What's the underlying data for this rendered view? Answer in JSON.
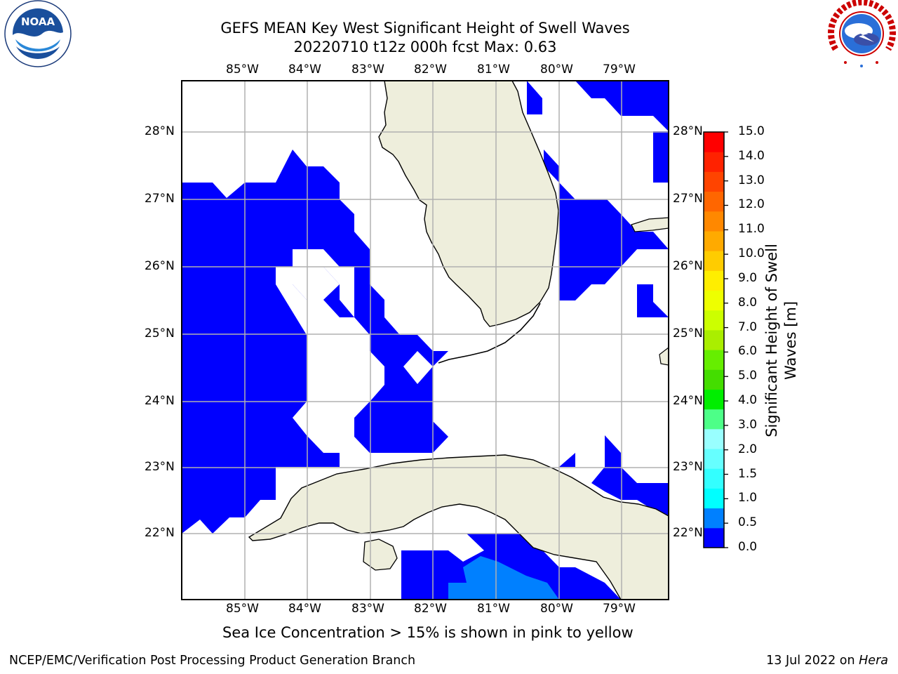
{
  "title": {
    "line1": "GEFS MEAN Key West Significant Height of Swell Waves",
    "line2": "20220710 t12z 000h fcst   Max: 0.63"
  },
  "logos": {
    "left": {
      "name": "NOAA",
      "ring_text": "NATIONAL OCEANIC AND ATMOSPHERIC ADMINISTRATION",
      "bottom_text": "U.S. DEPARTMENT OF COMMERCE"
    },
    "right": {
      "ring_text": "NATIONAL WEATHER SERVICE"
    }
  },
  "map": {
    "lon_labels": [
      "85°W",
      "84°W",
      "83°W",
      "82°W",
      "81°W",
      "80°W",
      "79°W"
    ],
    "lat_labels": [
      "28°N",
      "27°N",
      "26°N",
      "25°N",
      "24°N",
      "23°N",
      "22°N"
    ],
    "extent": {
      "lon_min": -86.0,
      "lon_max": -78.25,
      "lat_min": 21.0,
      "lat_max": 28.75
    },
    "colors": {
      "land": "#eeeedc",
      "swell_0_0.5": "#0000ff",
      "swell_0.5_1.0": "#0080ff",
      "grid": "#b0b0b0"
    }
  },
  "colorbar": {
    "label": "Significant Height of Swell Waves [m]",
    "label_line1": "Significant Height of Swell",
    "label_line2": "Waves [m]",
    "ticks": [
      "15.0",
      "14.0",
      "13.0",
      "12.0",
      "11.0",
      "10.0",
      "9.0",
      "8.0",
      "7.0",
      "6.0",
      "5.0",
      "4.0",
      "3.0",
      "2.0",
      "1.5",
      "1.0",
      "0.5",
      "0.0"
    ],
    "colors_bottom_to_top": [
      "#0000ff",
      "#0080ff",
      "#00ffff",
      "#33ffff",
      "#66ffff",
      "#99ffff",
      "#4dff88",
      "#00ee00",
      "#44dd00",
      "#66ee00",
      "#aaee00",
      "#ccff00",
      "#eeff00",
      "#ffee00",
      "#ffcc00",
      "#ffaa00",
      "#ff8800",
      "#ff6600",
      "#ff4400",
      "#ff2200",
      "#ff0000"
    ]
  },
  "ice_note": "Sea Ice Concentration > 15% is shown in pink to yellow",
  "footer": {
    "left": "NCEP/EMC/Verification Post Processing Product Generation Branch",
    "date": "13 Jul 2022 on",
    "host": "Hera"
  }
}
